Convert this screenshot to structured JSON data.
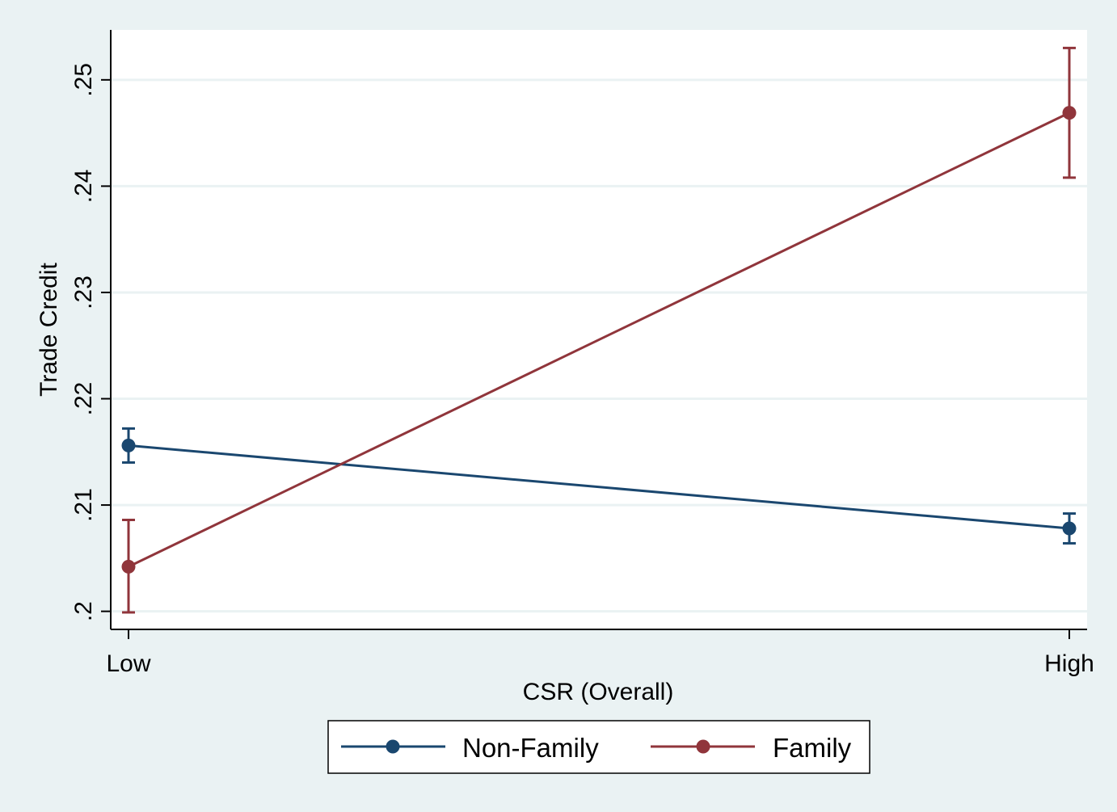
{
  "chart_data": {
    "type": "line",
    "title": "",
    "xlabel": "CSR (Overall)",
    "ylabel": "Trade Credit",
    "categories": [
      "Low",
      "High"
    ],
    "ylim": [
      0.1983,
      0.2547
    ],
    "yticks": [
      {
        "value": 0.2,
        "label": ".2"
      },
      {
        "value": 0.21,
        "label": ".21"
      },
      {
        "value": 0.22,
        "label": ".22"
      },
      {
        "value": 0.23,
        "label": ".23"
      },
      {
        "value": 0.24,
        "label": ".24"
      },
      {
        "value": 0.25,
        "label": ".25"
      }
    ],
    "grid": true,
    "legend_position": "bottom",
    "series": [
      {
        "name": "Non-Family",
        "color": "#1a476f",
        "values": [
          0.2156,
          0.2078
        ],
        "ci_low": [
          0.214,
          0.2064
        ],
        "ci_high": [
          0.2172,
          0.2092
        ]
      },
      {
        "name": "Family",
        "color": "#90353b",
        "values": [
          0.2042,
          0.2469
        ],
        "ci_low": [
          0.1999,
          0.2408
        ],
        "ci_high": [
          0.2086,
          0.253
        ]
      }
    ]
  }
}
